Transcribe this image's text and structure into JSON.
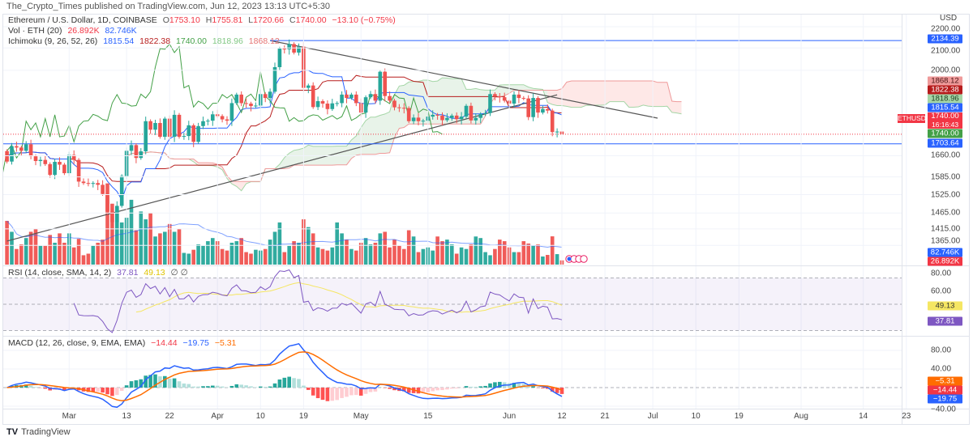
{
  "publisher": "The_Crypto_Times published on TradingView.com, Jun 12, 2023 13:13 UTC+5:30",
  "legend": {
    "symbol": "Ethereum / U.S. Dollar, 1D, COINBASE",
    "o_label": "O",
    "o": "1753.10",
    "h_label": "H",
    "h": "1755.81",
    "l_label": "L",
    "l": "1720.66",
    "c_label": "C",
    "c": "1740.00",
    "change": "−13.10 (−0.75%)",
    "vol_title": "Vol · ETH (20)",
    "vol_value": "26.892K",
    "vol_ma": "82.746K",
    "ichimoku_title": "Ichimoku (9, 26, 52, 26)",
    "ichimoku_values": [
      "1815.54",
      "1822.38",
      "1740.00",
      "1818.96",
      "1868.12"
    ],
    "rsi_title": "RSI (14, close, SMA, 14, 2)",
    "rsi_value": "37.81",
    "rsi_ma": "49.13",
    "rsi_extra": "∅ ∅",
    "macd_title": "MACD (12, 26, close, 9, EMA, EMA)",
    "macd_hist": "−14.44",
    "macd_line": "−19.75",
    "macd_signal": "−5.31"
  },
  "axis": {
    "currency": "USD",
    "symbol_tag": "ETHUSD",
    "current_price": "1740.00",
    "countdown": "16:16:43",
    "price_labels": [
      {
        "text": "2134.39",
        "color": "#2962ff",
        "fg": "#ffffff"
      },
      {
        "text": "1868.12",
        "color": "#ef9a9a",
        "fg": "#4a1515"
      },
      {
        "text": "1822.38",
        "color": "#b71c1c",
        "fg": "#ffffff"
      },
      {
        "text": "1818.96",
        "color": "#a5d6a7",
        "fg": "#1b3d1c"
      },
      {
        "text": "1815.54",
        "color": "#2962ff",
        "fg": "#ffffff"
      },
      {
        "text": "1740.00",
        "color": "#43a047",
        "fg": "#ffffff"
      },
      {
        "text": "1703.64",
        "color": "#2962ff",
        "fg": "#ffffff"
      }
    ],
    "volume_labels": [
      {
        "text": "82.746K",
        "color": "#2962ff"
      },
      {
        "text": "26.892K",
        "color": "#f23645"
      }
    ],
    "rsi_labels": [
      {
        "text": "49.13",
        "color": "#f5e663",
        "fg": "#333333"
      },
      {
        "text": "37.81",
        "color": "#7e57c2",
        "fg": "#ffffff"
      }
    ],
    "macd_labels": [
      {
        "text": "−5.31",
        "color": "#ff6d00"
      },
      {
        "text": "−14.44",
        "color": "#f23645"
      },
      {
        "text": "−19.75",
        "color": "#2962ff"
      }
    ]
  },
  "footer": {
    "logo": "TV",
    "brand": "TradingView"
  },
  "chart_data": {
    "type": "candlestick",
    "scale": "log",
    "grid": true,
    "colors": {
      "up": "#26a69a",
      "down": "#ef5350",
      "tenkan": "#2962ff",
      "kijun": "#b71c1c",
      "chikou": "#43a047",
      "span_a": "#a5d6a7",
      "span_b": "#ef9a9a",
      "rsi": "#7e57c2",
      "rsi_ma": "#f5e663",
      "macd": "#2962ff",
      "signal": "#ff6d00",
      "hline": "#2962ff",
      "trendline": "#555555"
    },
    "first_open": 1677,
    "candles_columns": [
      "date",
      "close",
      "volume_k"
    ],
    "candles": [
      [
        "2023-02-16",
        1639,
        280
      ],
      [
        "2023-02-17",
        1695,
        210
      ],
      [
        "2023-02-18",
        1690,
        100
      ],
      [
        "2023-02-19",
        1678,
        130
      ],
      [
        "2023-02-20",
        1702,
        170
      ],
      [
        "2023-02-21",
        1658,
        210
      ],
      [
        "2023-02-22",
        1641,
        230
      ],
      [
        "2023-02-23",
        1645,
        120
      ],
      [
        "2023-02-24",
        1630,
        120
      ],
      [
        "2023-02-25",
        1592,
        190
      ],
      [
        "2023-02-26",
        1638,
        140
      ],
      [
        "2023-02-27",
        1628,
        200
      ],
      [
        "2023-02-28",
        1598,
        140
      ],
      [
        "2023-03-01",
        1663,
        200
      ],
      [
        "2023-03-02",
        1645,
        110
      ],
      [
        "2023-03-03",
        1569,
        165
      ],
      [
        "2023-03-04",
        1564,
        60
      ],
      [
        "2023-03-05",
        1563,
        70
      ],
      [
        "2023-03-06",
        1564,
        120
      ],
      [
        "2023-03-07",
        1558,
        140
      ],
      [
        "2023-03-08",
        1527,
        160
      ],
      [
        "2023-03-09",
        1470,
        520
      ],
      [
        "2023-03-10",
        1436,
        390
      ],
      [
        "2023-03-11",
        1488,
        360
      ],
      [
        "2023-03-12",
        1588,
        270
      ],
      [
        "2023-03-13",
        1678,
        300
      ],
      [
        "2023-03-14",
        1699,
        415
      ],
      [
        "2023-03-15",
        1652,
        220
      ],
      [
        "2023-03-16",
        1676,
        340
      ],
      [
        "2023-03-17",
        1790,
        290
      ],
      [
        "2023-03-18",
        1757,
        330
      ],
      [
        "2023-03-19",
        1783,
        180
      ],
      [
        "2023-03-20",
        1730,
        200
      ],
      [
        "2023-03-21",
        1800,
        210
      ],
      [
        "2023-03-22",
        1730,
        260
      ],
      [
        "2023-03-23",
        1815,
        210
      ],
      [
        "2023-03-24",
        1730,
        230
      ],
      [
        "2023-03-25",
        1733,
        75
      ],
      [
        "2023-03-26",
        1774,
        70
      ],
      [
        "2023-03-27",
        1711,
        95
      ],
      [
        "2023-03-28",
        1771,
        130
      ],
      [
        "2023-03-29",
        1790,
        120
      ],
      [
        "2023-03-30",
        1792,
        150
      ],
      [
        "2023-03-31",
        1817,
        170
      ],
      [
        "2023-04-01",
        1810,
        150
      ],
      [
        "2023-04-02",
        1797,
        100
      ],
      [
        "2023-04-03",
        1792,
        90
      ],
      [
        "2023-04-04",
        1862,
        140
      ],
      [
        "2023-04-05",
        1897,
        150
      ],
      [
        "2023-04-06",
        1862,
        170
      ],
      [
        "2023-04-07",
        1860,
        80
      ],
      [
        "2023-04-08",
        1850,
        70
      ],
      [
        "2023-04-09",
        1852,
        95
      ],
      [
        "2023-04-10",
        1899,
        90
      ],
      [
        "2023-04-11",
        1883,
        100
      ],
      [
        "2023-04-12",
        1909,
        160
      ],
      [
        "2023-04-13",
        2014,
        210
      ],
      [
        "2023-04-14",
        2097,
        270
      ],
      [
        "2023-04-15",
        2094,
        80
      ],
      [
        "2023-04-16",
        2118,
        120
      ],
      [
        "2023-04-17",
        2079,
        150
      ],
      [
        "2023-04-18",
        2106,
        140
      ],
      [
        "2023-04-19",
        1925,
        290
      ],
      [
        "2023-04-20",
        1935,
        240
      ],
      [
        "2023-04-21",
        1846,
        200
      ],
      [
        "2023-04-22",
        1870,
        110
      ],
      [
        "2023-04-23",
        1860,
        100
      ],
      [
        "2023-04-24",
        1838,
        90
      ],
      [
        "2023-04-25",
        1861,
        110
      ],
      [
        "2023-04-26",
        1862,
        270
      ],
      [
        "2023-04-27",
        1897,
        200
      ],
      [
        "2023-04-28",
        1883,
        160
      ],
      [
        "2023-04-29",
        1897,
        100
      ],
      [
        "2023-04-30",
        1862,
        90
      ],
      [
        "2023-05-01",
        1824,
        140
      ],
      [
        "2023-05-02",
        1886,
        170
      ],
      [
        "2023-05-03",
        1899,
        130
      ],
      [
        "2023-05-04",
        1872,
        140
      ],
      [
        "2023-05-05",
        1994,
        200
      ],
      [
        "2023-05-06",
        1891,
        210
      ],
      [
        "2023-05-07",
        1872,
        110
      ],
      [
        "2023-05-08",
        1845,
        160
      ],
      [
        "2023-05-09",
        1843,
        120
      ],
      [
        "2023-05-10",
        1842,
        100
      ],
      [
        "2023-05-11",
        1790,
        220
      ],
      [
        "2023-05-12",
        1804,
        180
      ],
      [
        "2023-05-13",
        1790,
        80
      ],
      [
        "2023-05-14",
        1792,
        100
      ],
      [
        "2023-05-15",
        1808,
        110
      ],
      [
        "2023-05-16",
        1815,
        90
      ],
      [
        "2023-05-17",
        1812,
        180
      ],
      [
        "2023-05-18",
        1794,
        150
      ],
      [
        "2023-05-19",
        1803,
        160
      ],
      [
        "2023-05-20",
        1812,
        130
      ],
      [
        "2023-05-21",
        1798,
        70
      ],
      [
        "2023-05-22",
        1808,
        110
      ],
      [
        "2023-05-23",
        1851,
        100
      ],
      [
        "2023-05-24",
        1793,
        130
      ],
      [
        "2023-05-25",
        1803,
        180
      ],
      [
        "2023-05-26",
        1818,
        170
      ],
      [
        "2023-05-27",
        1822,
        80
      ],
      [
        "2023-05-28",
        1899,
        60
      ],
      [
        "2023-05-29",
        1890,
        100
      ],
      [
        "2023-05-30",
        1886,
        160
      ],
      [
        "2023-05-31",
        1872,
        150
      ],
      [
        "2023-06-01",
        1860,
        110
      ],
      [
        "2023-06-02",
        1897,
        80
      ],
      [
        "2023-06-03",
        1883,
        80
      ],
      [
        "2023-06-04",
        1881,
        150
      ],
      [
        "2023-06-05",
        1806,
        135
      ],
      [
        "2023-06-06",
        1883,
        120
      ],
      [
        "2023-06-07",
        1824,
        130
      ],
      [
        "2023-06-08",
        1838,
        52
      ],
      [
        "2023-06-09",
        1832,
        62
      ],
      [
        "2023-06-10",
        1748,
        181
      ],
      [
        "2023-06-11",
        1750,
        67
      ],
      [
        "2023-06-12",
        1740,
        27
      ]
    ],
    "price_ticks": [
      "2200.00",
      "2100.00",
      "2000.00",
      "1660.00",
      "1585.00",
      "1525.00",
      "1465.00",
      "1415.00",
      "1365.00"
    ],
    "rsi_ticks": [
      "80.00",
      "60.00"
    ],
    "rsi_bands": [
      70,
      50,
      30
    ],
    "macd_ticks": [
      "80.00",
      "40.00",
      "−40.00"
    ],
    "time_ticks": [
      {
        "label": "Mar",
        "date": "2023-03-01"
      },
      {
        "label": "13",
        "date": "2023-03-13"
      },
      {
        "label": "22",
        "date": "2023-03-22"
      },
      {
        "label": "Apr",
        "date": "2023-04-01"
      },
      {
        "label": "10",
        "date": "2023-04-10"
      },
      {
        "label": "19",
        "date": "2023-04-19"
      },
      {
        "label": "May",
        "date": "2023-05-01"
      },
      {
        "label": "15",
        "date": "2023-05-15"
      },
      {
        "label": "Jun",
        "date": "2023-06-01"
      },
      {
        "label": "12",
        "date": "2023-06-12"
      },
      {
        "label": "21",
        "date": "2023-06-21"
      },
      {
        "label": "Jul",
        "date": "2023-07-01"
      },
      {
        "label": "10",
        "date": "2023-07-10"
      },
      {
        "label": "19",
        "date": "2023-07-19"
      },
      {
        "label": "Aug",
        "date": "2023-08-01"
      },
      {
        "label": "14",
        "date": "2023-08-14"
      },
      {
        "label": "23",
        "date": "2023-08-23"
      }
    ],
    "drawings": [
      {
        "kind": "trendline",
        "from": [
          "2023-04-12",
          2134.39
        ],
        "to": [
          "2023-07-02",
          1802
        ]
      },
      {
        "kind": "trendline",
        "from": [
          "2023-02-16",
          1378
        ],
        "to": [
          "2023-06-11",
          1896
        ]
      },
      {
        "kind": "hline",
        "price": 2134.39,
        "from": "2023-04-12"
      },
      {
        "kind": "hline",
        "price": 1703.64
      }
    ],
    "current_price": 1740.0
  }
}
